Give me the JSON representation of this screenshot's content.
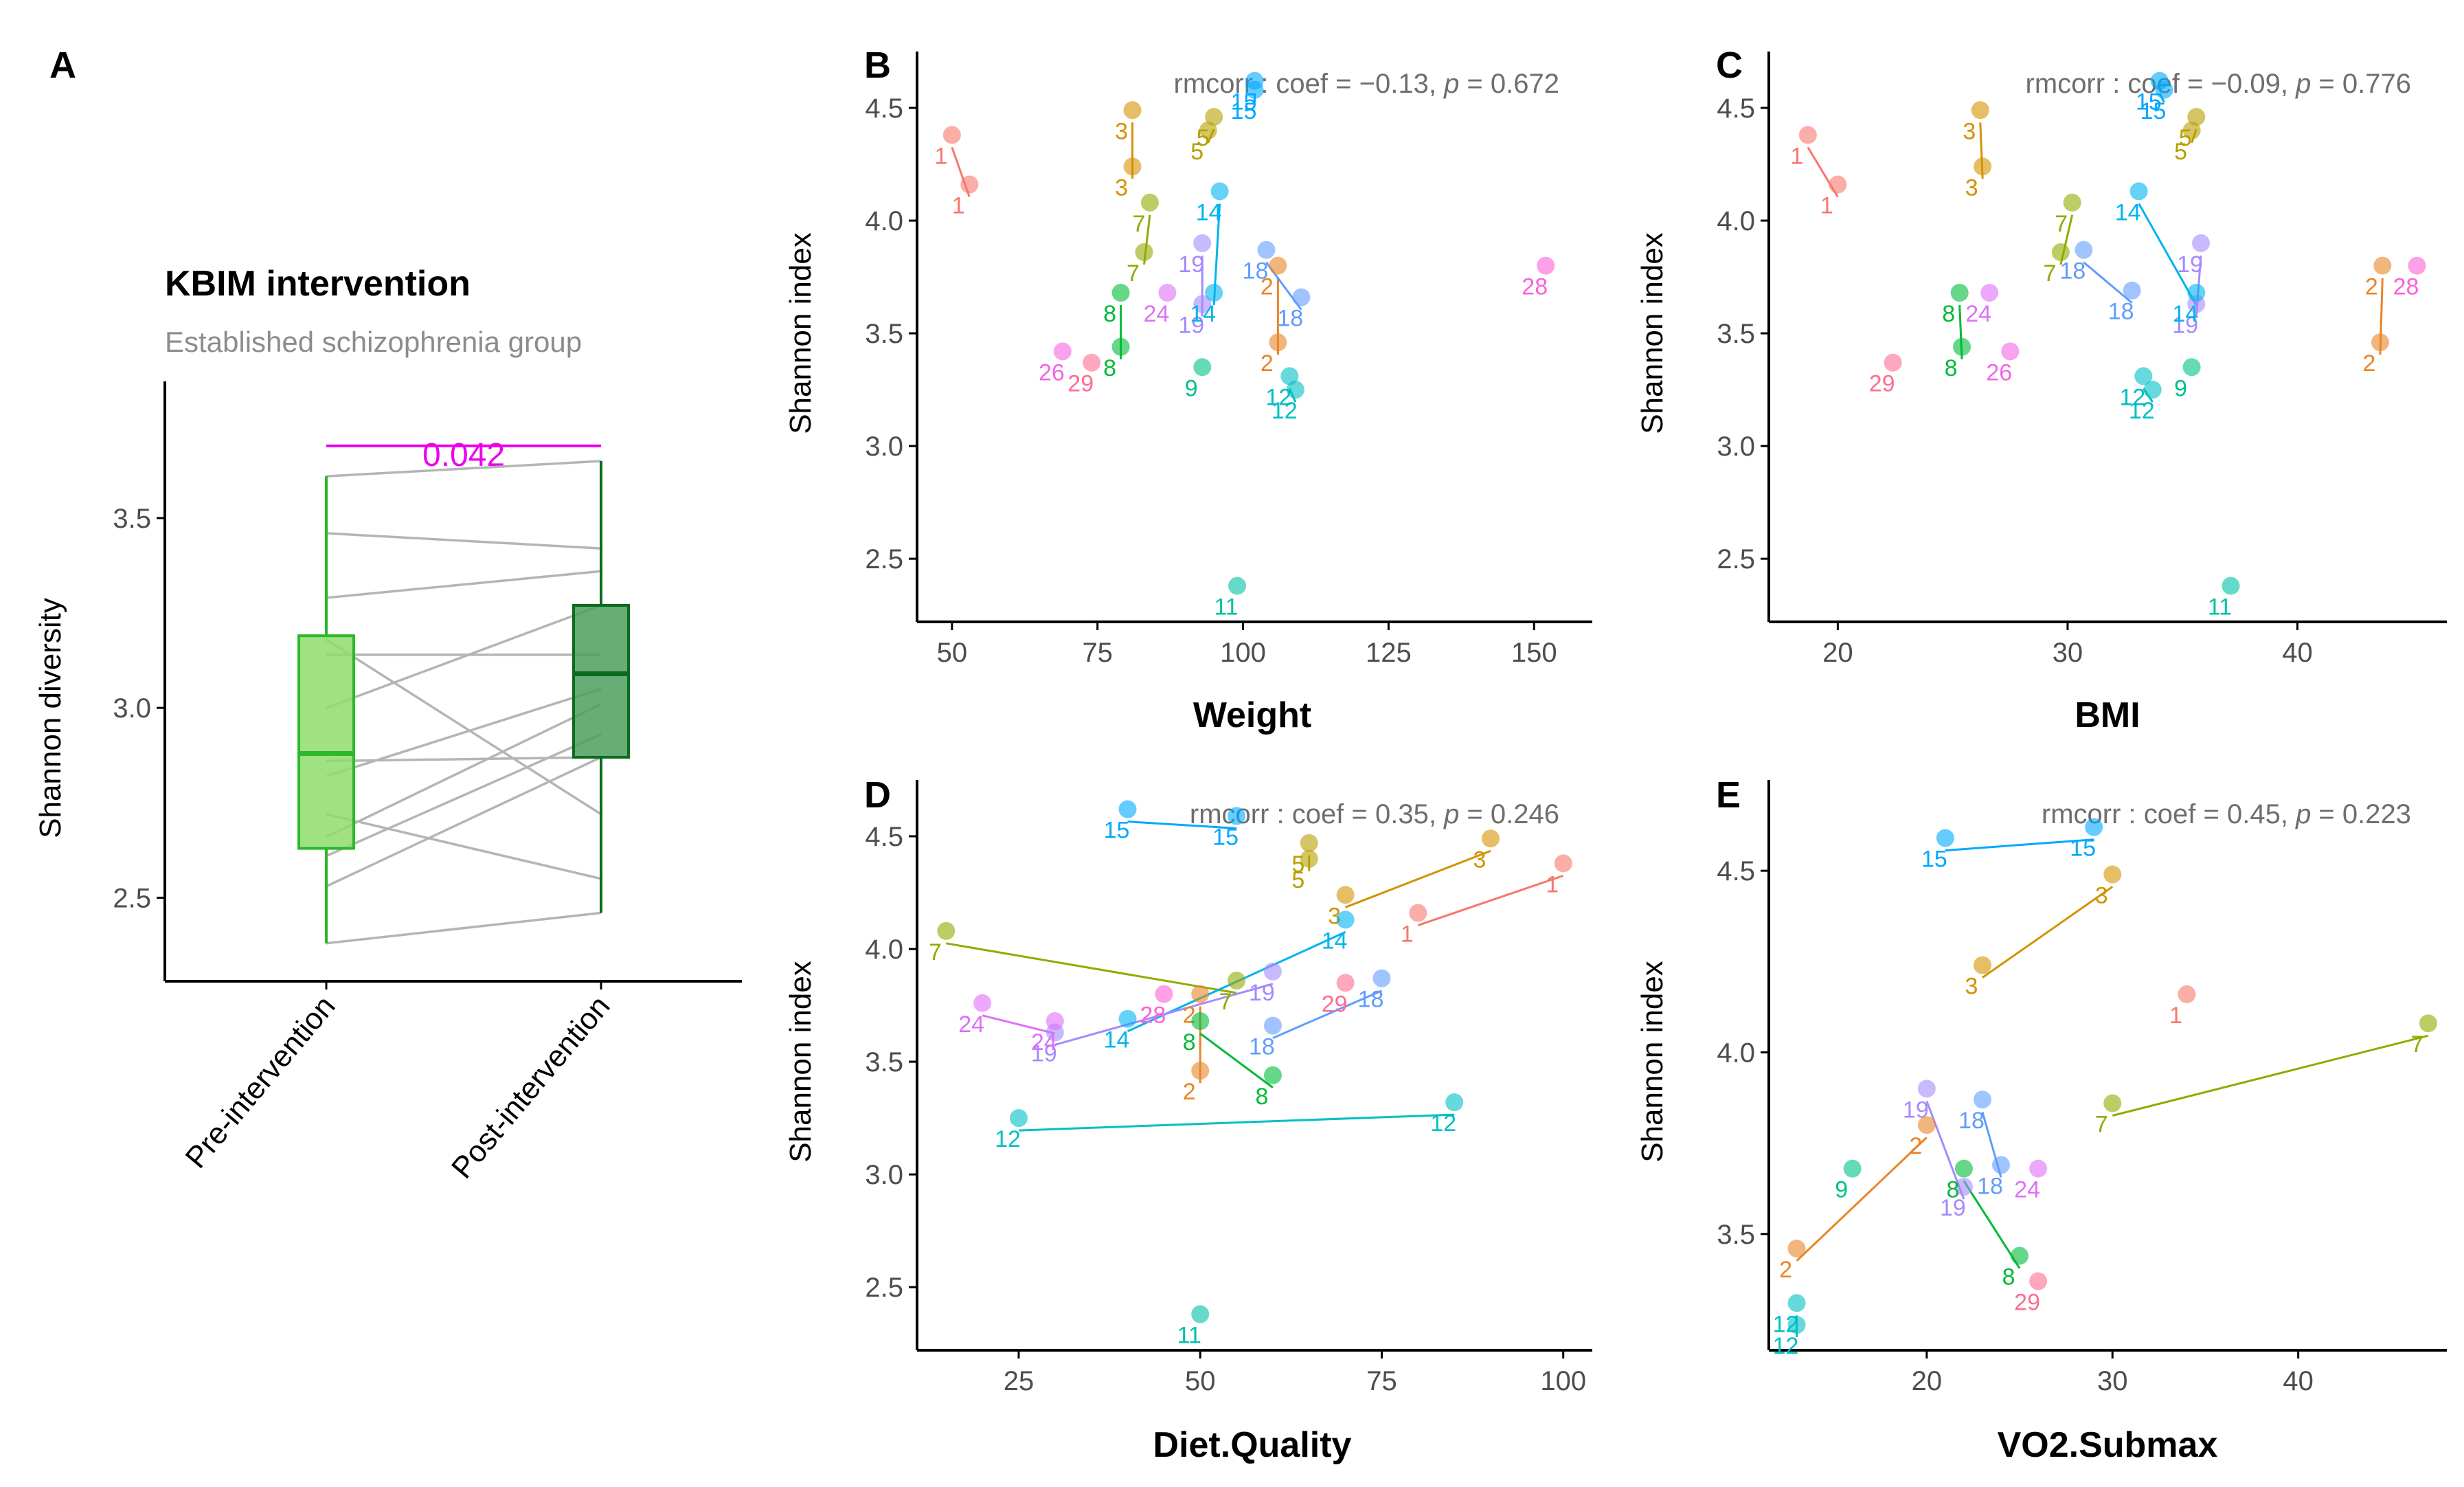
{
  "figure": {
    "panels": [
      "A",
      "B",
      "C",
      "D",
      "E"
    ]
  },
  "chart_data": [
    {
      "panel": "A",
      "type": "box",
      "title": "KBIM intervention",
      "subtitle": "Established schizophrenia group",
      "xlabel": "",
      "ylabel": "Shannon diversity",
      "categories": [
        "Pre-intervention",
        "Post-intervention"
      ],
      "ylim": [
        2.28,
        3.86
      ],
      "yticks": [
        2.5,
        3.0,
        3.5
      ],
      "ytick_labels": [
        "2.5",
        "3.0",
        "3.5"
      ],
      "boxes": [
        {
          "name": "Pre-intervention",
          "q1": 2.63,
          "median": 2.88,
          "q3": 3.19,
          "min": 2.38,
          "max": 3.61,
          "fill": "#8fdc6b",
          "stroke": "#2bb92b"
        },
        {
          "name": "Post-intervention",
          "q1": 2.87,
          "median": 3.09,
          "q3": 3.27,
          "min": 2.46,
          "max": 3.65,
          "fill": "#4e9e5e",
          "stroke": "#0b6b1e"
        }
      ],
      "pairs": [
        [
          2.38,
          2.46
        ],
        [
          2.53,
          2.87
        ],
        [
          2.61,
          2.93
        ],
        [
          2.66,
          3.01
        ],
        [
          2.72,
          2.55
        ],
        [
          2.82,
          3.05
        ],
        [
          2.86,
          2.87
        ],
        [
          3.0,
          3.27
        ],
        [
          3.14,
          3.14
        ],
        [
          3.18,
          2.72
        ],
        [
          3.29,
          3.36
        ],
        [
          3.46,
          3.42
        ],
        [
          3.61,
          3.65
        ]
      ],
      "significance": {
        "label": "0.042",
        "color": "#ee00ee"
      }
    },
    {
      "panel": "B",
      "type": "scatter",
      "xlabel": "Weight",
      "ylabel": "Shannon index",
      "stat": {
        "prefix": "rmcorr : coef = ",
        "coef": "−0.13",
        "mid": ", ",
        "p_symbol": "p",
        "p_text": " = 0.672"
      },
      "xlim": [
        44,
        160
      ],
      "ylim": [
        2.22,
        4.75
      ],
      "xticks": [
        50,
        75,
        100,
        125,
        150
      ],
      "xtick_labels": [
        "50",
        "75",
        "100",
        "125",
        "150"
      ],
      "yticks": [
        2.5,
        3.0,
        3.5,
        4.0,
        4.5
      ],
      "ytick_labels": [
        "2.5",
        "3.0",
        "3.5",
        "4.0",
        "4.5"
      ],
      "points": [
        {
          "id": "1",
          "x": 50,
          "y": 4.38
        },
        {
          "id": "1",
          "x": 53,
          "y": 4.16
        },
        {
          "id": "3",
          "x": 81,
          "y": 4.49
        },
        {
          "id": "3",
          "x": 81,
          "y": 4.24
        },
        {
          "id": "5",
          "x": 95,
          "y": 4.46
        },
        {
          "id": "5",
          "x": 94,
          "y": 4.4
        },
        {
          "id": "15",
          "x": 102,
          "y": 4.62
        },
        {
          "id": "15",
          "x": 102,
          "y": 4.58
        },
        {
          "id": "14",
          "x": 96,
          "y": 4.13
        },
        {
          "id": "7",
          "x": 84,
          "y": 4.08
        },
        {
          "id": "7",
          "x": 83,
          "y": 3.86
        },
        {
          "id": "19",
          "x": 93,
          "y": 3.9
        },
        {
          "id": "19",
          "x": 93,
          "y": 3.63
        },
        {
          "id": "18",
          "x": 104,
          "y": 3.87
        },
        {
          "id": "18",
          "x": 110,
          "y": 3.66
        },
        {
          "id": "2",
          "x": 106,
          "y": 3.8
        },
        {
          "id": "2",
          "x": 106,
          "y": 3.46
        },
        {
          "id": "8",
          "x": 79,
          "y": 3.68
        },
        {
          "id": "8",
          "x": 79,
          "y": 3.44
        },
        {
          "id": "24",
          "x": 87,
          "y": 3.68
        },
        {
          "id": "14",
          "x": 95,
          "y": 3.68
        },
        {
          "id": "26",
          "x": 69,
          "y": 3.42
        },
        {
          "id": "29",
          "x": 74,
          "y": 3.37
        },
        {
          "id": "9",
          "x": 93,
          "y": 3.35
        },
        {
          "id": "12",
          "x": 108,
          "y": 3.31
        },
        {
          "id": "12",
          "x": 109,
          "y": 3.25
        },
        {
          "id": "11",
          "x": 99,
          "y": 2.38
        },
        {
          "id": "28",
          "x": 152,
          "y": 3.8
        }
      ]
    },
    {
      "panel": "C",
      "type": "scatter",
      "xlabel": "BMI",
      "ylabel": "Shannon index",
      "stat": {
        "prefix": "rmcorr : coef = ",
        "coef": "−0.09",
        "mid": ", ",
        "p_symbol": "p",
        "p_text": " = 0.776"
      },
      "xlim": [
        17,
        46.5
      ],
      "ylim": [
        2.22,
        4.75
      ],
      "xticks": [
        20,
        30,
        40
      ],
      "xtick_labels": [
        "20",
        "30",
        "40"
      ],
      "yticks": [
        2.5,
        3.0,
        3.5,
        4.0,
        4.5
      ],
      "ytick_labels": [
        "2.5",
        "3.0",
        "3.5",
        "4.0",
        "4.5"
      ],
      "points": [
        {
          "id": "1",
          "x": 18.7,
          "y": 4.38
        },
        {
          "id": "1",
          "x": 20.0,
          "y": 4.16
        },
        {
          "id": "3",
          "x": 26.2,
          "y": 4.49
        },
        {
          "id": "3",
          "x": 26.3,
          "y": 4.24
        },
        {
          "id": "15",
          "x": 34.0,
          "y": 4.62
        },
        {
          "id": "15",
          "x": 34.2,
          "y": 4.58
        },
        {
          "id": "5",
          "x": 35.6,
          "y": 4.46
        },
        {
          "id": "5",
          "x": 35.4,
          "y": 4.4
        },
        {
          "id": "14",
          "x": 33.1,
          "y": 4.13
        },
        {
          "id": "7",
          "x": 30.2,
          "y": 4.08
        },
        {
          "id": "7",
          "x": 29.7,
          "y": 3.86
        },
        {
          "id": "18",
          "x": 30.7,
          "y": 3.87
        },
        {
          "id": "18",
          "x": 32.8,
          "y": 3.69
        },
        {
          "id": "19",
          "x": 35.8,
          "y": 3.9
        },
        {
          "id": "19",
          "x": 35.6,
          "y": 3.63
        },
        {
          "id": "8",
          "x": 25.3,
          "y": 3.68
        },
        {
          "id": "8",
          "x": 25.4,
          "y": 3.44
        },
        {
          "id": "24",
          "x": 26.6,
          "y": 3.68
        },
        {
          "id": "26",
          "x": 27.5,
          "y": 3.42
        },
        {
          "id": "29",
          "x": 22.4,
          "y": 3.37
        },
        {
          "id": "9",
          "x": 35.4,
          "y": 3.35
        },
        {
          "id": "12",
          "x": 33.3,
          "y": 3.31
        },
        {
          "id": "12",
          "x": 33.7,
          "y": 3.25
        },
        {
          "id": "11",
          "x": 37.1,
          "y": 2.38
        },
        {
          "id": "2",
          "x": 43.7,
          "y": 3.8
        },
        {
          "id": "2",
          "x": 43.6,
          "y": 3.46
        },
        {
          "id": "28",
          "x": 45.2,
          "y": 3.8
        },
        {
          "id": "14",
          "x": 35.6,
          "y": 3.68
        }
      ]
    },
    {
      "panel": "D",
      "type": "scatter",
      "xlabel": "Diet.Quality",
      "ylabel": "Shannon index",
      "stat": {
        "prefix": "rmcorr : coef = 0.35",
        "coef": "",
        "mid": ", ",
        "p_symbol": "p",
        "p_text": " = 0.246"
      },
      "xlim": [
        11,
        104
      ],
      "ylim": [
        2.22,
        4.75
      ],
      "xticks": [
        25,
        50,
        75,
        100
      ],
      "xtick_labels": [
        "25",
        "50",
        "75",
        "100"
      ],
      "yticks": [
        2.5,
        3.0,
        3.5,
        4.0,
        4.5
      ],
      "ytick_labels": [
        "2.5",
        "3.0",
        "3.5",
        "4.0",
        "4.5"
      ],
      "points": [
        {
          "id": "15",
          "x": 40,
          "y": 4.62
        },
        {
          "id": "15",
          "x": 55,
          "y": 4.59
        },
        {
          "id": "5",
          "x": 65,
          "y": 4.47
        },
        {
          "id": "5",
          "x": 65,
          "y": 4.4
        },
        {
          "id": "3",
          "x": 90,
          "y": 4.49
        },
        {
          "id": "3",
          "x": 70,
          "y": 4.24
        },
        {
          "id": "1",
          "x": 100,
          "y": 4.38
        },
        {
          "id": "1",
          "x": 80,
          "y": 4.16
        },
        {
          "id": "7",
          "x": 15,
          "y": 4.08
        },
        {
          "id": "7",
          "x": 55,
          "y": 3.86
        },
        {
          "id": "14",
          "x": 70,
          "y": 4.13
        },
        {
          "id": "14",
          "x": 40,
          "y": 3.69
        },
        {
          "id": "19",
          "x": 60,
          "y": 3.9
        },
        {
          "id": "19",
          "x": 30,
          "y": 3.63
        },
        {
          "id": "29",
          "x": 70,
          "y": 3.85
        },
        {
          "id": "18",
          "x": 75,
          "y": 3.87
        },
        {
          "id": "18",
          "x": 60,
          "y": 3.66
        },
        {
          "id": "28",
          "x": 45,
          "y": 3.8
        },
        {
          "id": "24",
          "x": 20,
          "y": 3.76
        },
        {
          "id": "24",
          "x": 30,
          "y": 3.68
        },
        {
          "id": "2",
          "x": 50,
          "y": 3.8
        },
        {
          "id": "2",
          "x": 50,
          "y": 3.46
        },
        {
          "id": "8",
          "x": 50,
          "y": 3.68
        },
        {
          "id": "8",
          "x": 60,
          "y": 3.44
        },
        {
          "id": "12",
          "x": 25,
          "y": 3.25
        },
        {
          "id": "12",
          "x": 85,
          "y": 3.32
        },
        {
          "id": "11",
          "x": 50,
          "y": 2.38
        }
      ]
    },
    {
      "panel": "E",
      "type": "scatter",
      "xlabel": "VO2.Submax",
      "ylabel": "Shannon index",
      "stat": {
        "prefix": "rmcorr : coef = 0.45",
        "coef": "",
        "mid": ", ",
        "p_symbol": "p",
        "p_text": " = 0.223"
      },
      "xlim": [
        11.5,
        48
      ],
      "ylim": [
        3.18,
        4.75
      ],
      "xticks": [
        20,
        30,
        40
      ],
      "xtick_labels": [
        "20",
        "30",
        "40"
      ],
      "yticks": [
        3.5,
        4.0,
        4.5
      ],
      "ytick_labels": [
        "3.5",
        "4.0",
        "4.5"
      ],
      "points": [
        {
          "id": "15",
          "x": 21,
          "y": 4.59
        },
        {
          "id": "15",
          "x": 29,
          "y": 4.62
        },
        {
          "id": "3",
          "x": 30,
          "y": 4.49
        },
        {
          "id": "3",
          "x": 23,
          "y": 4.24
        },
        {
          "id": "1",
          "x": 34,
          "y": 4.16
        },
        {
          "id": "7",
          "x": 47,
          "y": 4.08
        },
        {
          "id": "7",
          "x": 30,
          "y": 3.86
        },
        {
          "id": "19",
          "x": 20,
          "y": 3.9
        },
        {
          "id": "19",
          "x": 22,
          "y": 3.63
        },
        {
          "id": "18",
          "x": 23,
          "y": 3.87
        },
        {
          "id": "18",
          "x": 24,
          "y": 3.69
        },
        {
          "id": "2",
          "x": 20,
          "y": 3.8
        },
        {
          "id": "2",
          "x": 13,
          "y": 3.46
        },
        {
          "id": "9",
          "x": 16,
          "y": 3.68
        },
        {
          "id": "24",
          "x": 26,
          "y": 3.68
        },
        {
          "id": "8",
          "x": 22,
          "y": 3.68
        },
        {
          "id": "8",
          "x": 25,
          "y": 3.44
        },
        {
          "id": "29",
          "x": 26,
          "y": 3.37
        },
        {
          "id": "12",
          "x": 13,
          "y": 3.31
        },
        {
          "id": "12",
          "x": 13,
          "y": 3.25
        }
      ]
    }
  ],
  "colors": {
    "1": "#f8766d",
    "2": "#e88526",
    "3": "#d39200",
    "5": "#b79f00",
    "7": "#93aa00",
    "8": "#00ba38",
    "9": "#00c08b",
    "11": "#00c1a3",
    "12": "#00bfc4",
    "14": "#00b4ef",
    "15": "#00a9ff",
    "18": "#619cff",
    "19": "#a58aff",
    "24": "#df70f8",
    "26": "#f564e3",
    "28": "#fb61d7",
    "29": "#ff6c91"
  }
}
